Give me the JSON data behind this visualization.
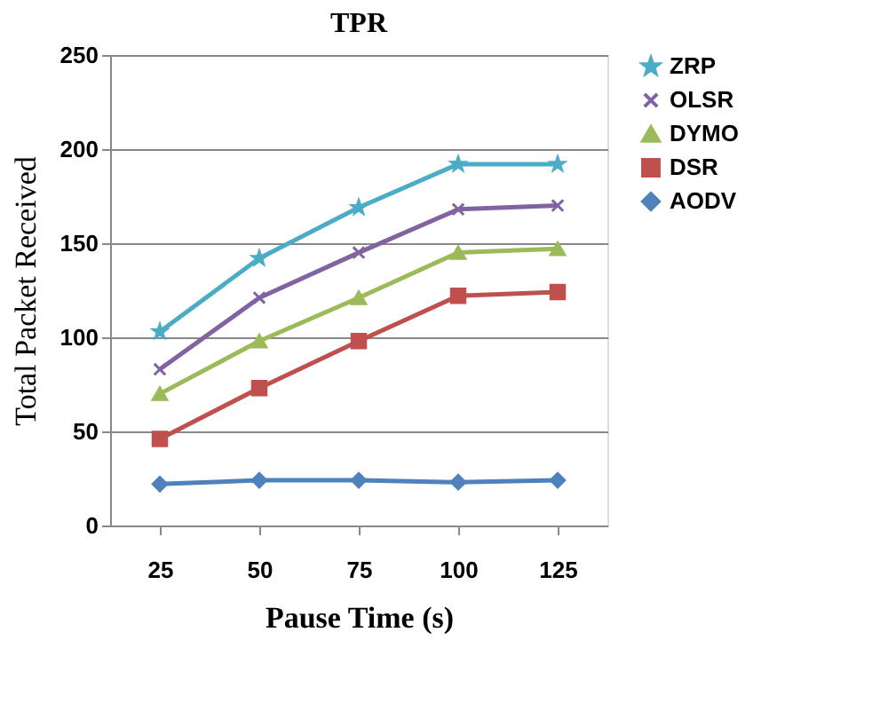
{
  "chart_data": {
    "type": "line",
    "title": "TPR",
    "xlabel": "Pause Time (s)",
    "ylabel": "Total Packet Received",
    "categories": [
      "25",
      "50",
      "75",
      "100",
      "125"
    ],
    "series": [
      {
        "name": "ZRP",
        "color": "#4bacc6",
        "marker": "star",
        "values": [
          103,
          142,
          169,
          192,
          192
        ]
      },
      {
        "name": "OLSR",
        "color": "#8064a2",
        "marker": "cross",
        "values": [
          83,
          121,
          145,
          168,
          170
        ]
      },
      {
        "name": "DYMO",
        "color": "#9bbb59",
        "marker": "triangle",
        "values": [
          70,
          98,
          121,
          145,
          147
        ]
      },
      {
        "name": "DSR",
        "color": "#c0504d",
        "marker": "square",
        "values": [
          46,
          73,
          98,
          122,
          124
        ]
      },
      {
        "name": "AODV",
        "color": "#4f81bd",
        "marker": "diamond",
        "values": [
          22,
          24,
          24,
          23,
          24
        ]
      }
    ],
    "ylim": [
      0,
      250
    ],
    "yticks": [
      0,
      50,
      100,
      150,
      200,
      250
    ],
    "grid": "y",
    "legend": "right",
    "line_style": "solid"
  }
}
